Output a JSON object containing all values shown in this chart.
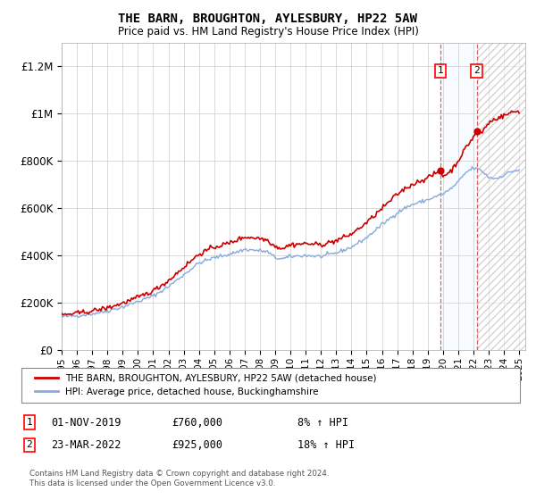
{
  "title": "THE BARN, BROUGHTON, AYLESBURY, HP22 5AW",
  "subtitle": "Price paid vs. HM Land Registry's House Price Index (HPI)",
  "hpi_label": "HPI: Average price, detached house, Buckinghamshire",
  "property_label": "THE BARN, BROUGHTON, AYLESBURY, HP22 5AW (detached house)",
  "footer": "Contains HM Land Registry data © Crown copyright and database right 2024.\nThis data is licensed under the Open Government Licence v3.0.",
  "sale1_date": "01-NOV-2019",
  "sale1_price": 760000,
  "sale1_hpi_text": "8% ↑ HPI",
  "sale2_date": "23-MAR-2022",
  "sale2_price": 925000,
  "sale2_hpi_text": "18% ↑ HPI",
  "ylim": [
    0,
    1300000
  ],
  "yticks": [
    0,
    200000,
    400000,
    600000,
    800000,
    1000000,
    1200000
  ],
  "ytick_labels": [
    "£0",
    "£200K",
    "£400K",
    "£600K",
    "£800K",
    "£1M",
    "£1.2M"
  ],
  "property_color": "#cc0000",
  "hpi_color": "#88aadd",
  "sale1_x": 2019.833,
  "sale2_x": 2022.208,
  "shade_color": "#ddeeff",
  "hatch_color": "#aaaaaa",
  "grid_color": "#cccccc",
  "xlim_left": 1995.0,
  "xlim_right": 2025.4
}
